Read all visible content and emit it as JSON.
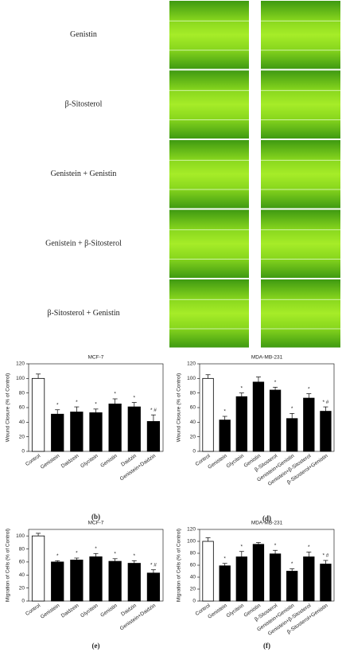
{
  "images": {
    "rows": [
      {
        "label": "Genistin"
      },
      {
        "label": "β-Sitosterol"
      },
      {
        "label": "Genistein + Genistin"
      },
      {
        "label": "Genistein + β-Sitosterol"
      },
      {
        "label": "β-Sitosterol + Genistin"
      }
    ]
  },
  "chart_data": [
    {
      "type": "bar",
      "panel": "(b)",
      "title": "MCF-7",
      "y_label": "Wound Closure (% of Control)",
      "categories": [
        "Control",
        "Genistein",
        "Daidzein",
        "Glycitein",
        "Genistin",
        "Daidzin",
        "Genistein+Daidzin"
      ],
      "values": [
        100,
        51,
        54,
        53,
        65,
        61,
        41
      ],
      "errors": [
        6,
        6,
        7,
        5,
        7,
        6,
        9
      ],
      "annotations": [
        null,
        "*",
        "*",
        "*",
        "*",
        "*",
        "* #"
      ],
      "colors": [
        "#ffffff",
        "#000000",
        "#000000",
        "#000000",
        "#000000",
        "#000000",
        "#000000"
      ],
      "ylim": [
        0,
        120
      ],
      "yticks": [
        0,
        20,
        40,
        60,
        80,
        100,
        120
      ]
    },
    {
      "type": "bar",
      "panel": "(d)",
      "title": "MDA-MB-231",
      "y_label": "Wound Closure (% of Control)",
      "categories": [
        "Control",
        "Genistein",
        "Glycitein",
        "Genistin",
        "β-Sitosterol",
        "Genistein+Genistin",
        "Genistein+β-Sitosterol",
        "β-Sitosterol+Genistin"
      ],
      "values": [
        100,
        43,
        75,
        95,
        84,
        45,
        73,
        55
      ],
      "errors": [
        5,
        5,
        5,
        7,
        4,
        7,
        6,
        6
      ],
      "annotations": [
        null,
        "*",
        "*",
        null,
        "*",
        "*",
        "*",
        "* #"
      ],
      "colors": [
        "#ffffff",
        "#000000",
        "#000000",
        "#000000",
        "#000000",
        "#000000",
        "#000000",
        "#000000"
      ],
      "ylim": [
        0,
        120
      ],
      "yticks": [
        0,
        20,
        40,
        60,
        80,
        100,
        120
      ]
    },
    {
      "type": "bar",
      "panel": "(e)",
      "title": "MCF-7",
      "y_label": "Migration of Cells  (% of Control)",
      "categories": [
        "Control",
        "Genistein",
        "Daidzein",
        "Glycitein",
        "Genistin",
        "Daidzin",
        "Genistein+Daidzin"
      ],
      "values": [
        100,
        60,
        63,
        68,
        61,
        58,
        43
      ],
      "errors": [
        4,
        2,
        3,
        5,
        4,
        4,
        5
      ],
      "annotations": [
        null,
        "*",
        "*",
        "*",
        "*",
        "*",
        "* #"
      ],
      "colors": [
        "#ffffff",
        "#000000",
        "#000000",
        "#000000",
        "#000000",
        "#000000",
        "#000000"
      ],
      "ylim": [
        0,
        110
      ],
      "yticks": [
        0,
        20,
        40,
        60,
        80,
        100
      ]
    },
    {
      "type": "bar",
      "panel": "(f)",
      "title": "MDA-MB-231",
      "y_label": "Migration of Cells (% of Control)",
      "categories": [
        "Control",
        "Genistein",
        "Glycitein",
        "Genistin",
        "β-Sitosterol",
        "Genistein+Genistin",
        "Genistein+β-Sitosterol",
        "β-Sitosterol+Genistin"
      ],
      "values": [
        100,
        59,
        74,
        95,
        79,
        50,
        74,
        62
      ],
      "errors": [
        6,
        4,
        9,
        3,
        6,
        4,
        8,
        6
      ],
      "annotations": [
        null,
        "*",
        "*",
        null,
        "*",
        "*",
        "*",
        "* #"
      ],
      "colors": [
        "#ffffff",
        "#000000",
        "#000000",
        "#000000",
        "#000000",
        "#000000",
        "#000000",
        "#000000"
      ],
      "ylim": [
        0,
        120
      ],
      "yticks": [
        0,
        20,
        40,
        60,
        80,
        100,
        120
      ]
    }
  ]
}
